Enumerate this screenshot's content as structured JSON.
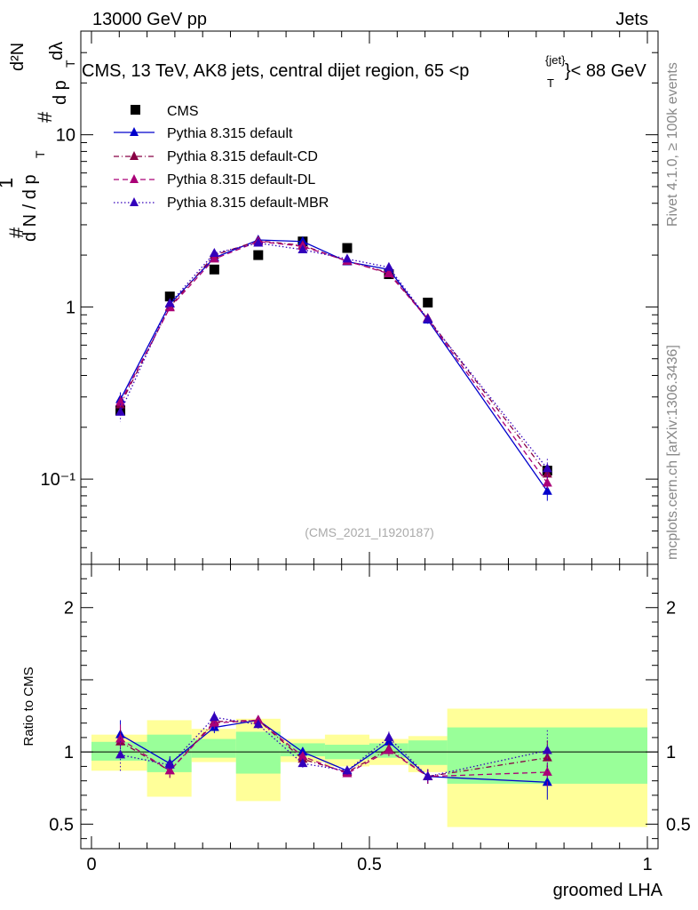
{
  "header": {
    "left": "13000 GeV pp",
    "right": "Jets"
  },
  "side_text": {
    "rivet": "Rivet 4.1.0, ≥ 100k events",
    "mcplots": "mcplots.cern.ch [arXiv:1306.3436]"
  },
  "chart_data": [
    {
      "type": "scatter",
      "panel": "main",
      "title": "CMS, 13 TeV, AK8 jets, central dijet region, 65 <p",
      "title_sup": "{jet}",
      "title_sub": "T",
      "title_end": "}< 88 GeV",
      "watermark": "(CMS_2021_I1920187)",
      "ylabel": "1/N dN/dp_T d²N/dp_T dλ",
      "ylabel_parts": {
        "one": "1",
        "hash": "#",
        "dn": "d N / d p",
        "t": "T",
        "d2n": "d²N",
        "dpt": "d p",
        "dl": "dλ"
      },
      "yscale": "log",
      "ylim": [
        0.032,
        40
      ],
      "xlim": [
        0,
        1
      ],
      "yticks": [
        0.1,
        1,
        10
      ],
      "ytick_labels": [
        "10⁻¹",
        "1",
        "10"
      ],
      "legend": [
        "CMS",
        "Pythia 8.315 default",
        "Pythia 8.315 default-CD",
        "Pythia 8.315 default-DL",
        "Pythia 8.315 default-MBR"
      ],
      "legend_position": "top-left",
      "x": [
        0.052,
        0.141,
        0.221,
        0.3,
        0.38,
        0.46,
        0.535,
        0.605,
        0.82
      ],
      "series": [
        {
          "name": "CMS",
          "style": "data",
          "values": [
            0.25,
            1.15,
            1.65,
            2.0,
            2.4,
            2.2,
            1.55,
            1.06,
            0.112
          ]
        },
        {
          "name": "Pythia 8.315 default",
          "style": "solid",
          "values": [
            0.29,
            1.04,
            1.93,
            2.45,
            2.4,
            1.83,
            1.65,
            0.84,
            0.085
          ]
        },
        {
          "name": "Pythia 8.315 default-CD",
          "style": "dashdot",
          "values": [
            0.27,
            1.0,
            2.0,
            2.42,
            2.28,
            1.84,
            1.58,
            0.86,
            0.107
          ]
        },
        {
          "name": "Pythia 8.315 default-DL",
          "style": "dashed",
          "values": [
            0.28,
            0.99,
            1.9,
            2.4,
            2.25,
            1.85,
            1.56,
            0.85,
            0.095
          ]
        },
        {
          "name": "Pythia 8.315 default-MBR",
          "style": "dotted",
          "values": [
            0.245,
            1.05,
            2.05,
            2.35,
            2.15,
            1.9,
            1.7,
            0.85,
            0.115
          ]
        }
      ],
      "colors": {
        "data": "#000000",
        "default": "#0000cc",
        "cd": "#880044",
        "dl": "#aa0077",
        "mbr": "#3300bb"
      }
    },
    {
      "type": "scatter",
      "panel": "ratio",
      "ylabel": "Ratio to CMS",
      "xlabel": "groomed LHA",
      "ylim": [
        0.33,
        2.3
      ],
      "xlim": [
        0,
        1
      ],
      "yticks": [
        0.5,
        1,
        2
      ],
      "ytick_labels": [
        "0.5",
        "1",
        "2"
      ],
      "xticks": [
        0,
        0.5,
        1
      ],
      "xtick_labels": [
        "0",
        "0.5",
        "1"
      ],
      "bins": [
        [
          0.0,
          0.1
        ],
        [
          0.1,
          0.18
        ],
        [
          0.18,
          0.26
        ],
        [
          0.26,
          0.34
        ],
        [
          0.34,
          0.42
        ],
        [
          0.42,
          0.5
        ],
        [
          0.5,
          0.57
        ],
        [
          0.57,
          0.64
        ],
        [
          0.64,
          1.0
        ]
      ],
      "band_green": [
        [
          0.94,
          1.07
        ],
        [
          0.86,
          1.12
        ],
        [
          0.96,
          1.09
        ],
        [
          0.85,
          1.14
        ],
        [
          0.97,
          1.06
        ],
        [
          0.95,
          1.05
        ],
        [
          0.96,
          1.06
        ],
        [
          0.91,
          1.08
        ],
        [
          0.78,
          1.17
        ]
      ],
      "band_yellow": [
        [
          0.87,
          1.12
        ],
        [
          0.69,
          1.22
        ],
        [
          0.93,
          1.16
        ],
        [
          0.66,
          1.23
        ],
        [
          0.93,
          1.09
        ],
        [
          0.9,
          1.12
        ],
        [
          0.91,
          1.09
        ],
        [
          0.86,
          1.11
        ],
        [
          0.48,
          1.3
        ]
      ],
      "x": [
        0.052,
        0.141,
        0.221,
        0.3,
        0.38,
        0.46,
        0.535,
        0.605,
        0.82
      ],
      "series": [
        {
          "name": "Pythia 8.315 default",
          "style": "solid",
          "values": [
            1.12,
            0.92,
            1.17,
            1.22,
            1.0,
            0.87,
            1.07,
            0.83,
            0.79
          ],
          "err": [
            0.1,
            0.05,
            0.04,
            0.03,
            0.03,
            0.03,
            0.04,
            0.05,
            0.12
          ]
        },
        {
          "name": "Pythia 8.315 default-CD",
          "style": "dashdot",
          "values": [
            1.07,
            0.87,
            1.21,
            1.22,
            0.95,
            0.86,
            1.02,
            0.83,
            0.96
          ],
          "err": [
            0.1,
            0.05,
            0.04,
            0.03,
            0.03,
            0.03,
            0.04,
            0.05,
            0.12
          ]
        },
        {
          "name": "Pythia 8.315 default-DL",
          "style": "dashed",
          "values": [
            1.09,
            0.87,
            1.2,
            1.22,
            0.97,
            0.85,
            1.01,
            0.83,
            0.86
          ],
          "err": [
            0.1,
            0.05,
            0.04,
            0.03,
            0.03,
            0.03,
            0.04,
            0.05,
            0.12
          ]
        },
        {
          "name": "Pythia 8.315 default-MBR",
          "style": "dotted",
          "values": [
            0.98,
            0.91,
            1.24,
            1.19,
            0.92,
            0.87,
            1.1,
            0.83,
            1.01
          ],
          "err": [
            0.12,
            0.05,
            0.04,
            0.03,
            0.03,
            0.03,
            0.04,
            0.05,
            0.14
          ]
        }
      ]
    }
  ]
}
